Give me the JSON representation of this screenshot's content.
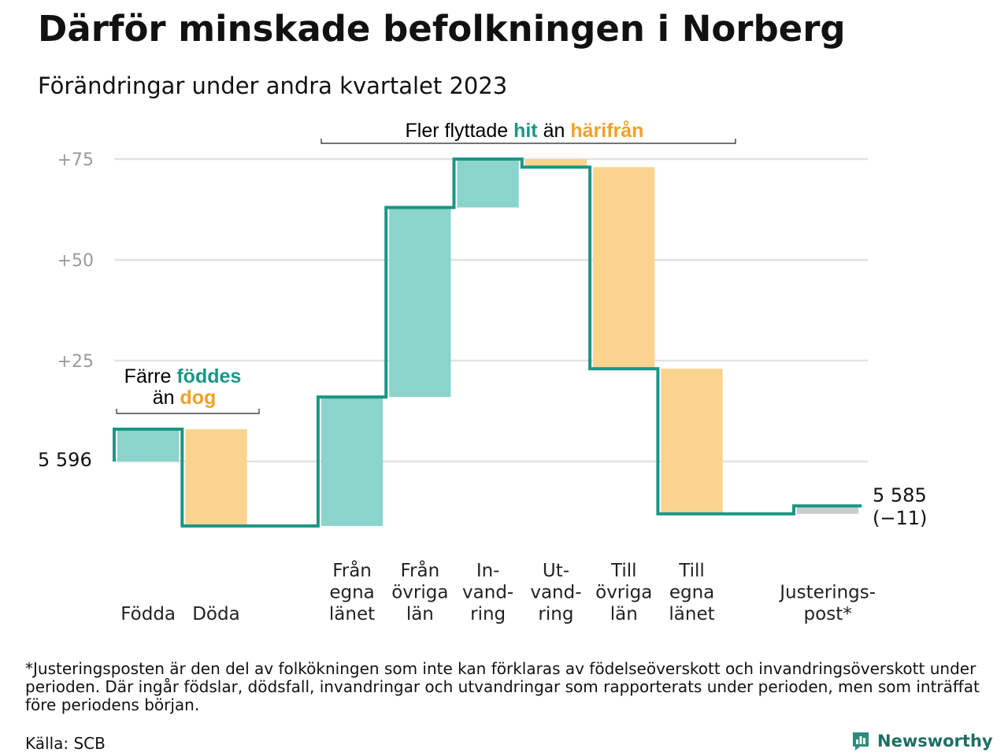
{
  "title": "Därför minskade befolkningen i Norberg",
  "subtitle": "Förändringar under andra kvartalet 2023",
  "footnote": "*Justeringsposten är den del av folkökningen som inte kan förklaras av födelseöverskott och invandringsöverskott under perioden. Där ingår födslar, dödsfall, invandringar och utvandringar som rapporterats under perioden, men som inträffat före periodens början.",
  "source": "Källa: SCB",
  "brand": "Newsworthy",
  "colors": {
    "increase": "#8ad4cc",
    "decrease": "#fad48e",
    "adjustment": "#cccccc",
    "line": "#1a9685",
    "accent_teal": "#1a9685",
    "accent_orange": "#f2a127"
  },
  "annotations": {
    "births": {
      "line1": "Färre",
      "teal": "föddes",
      "line2_prefix": "än",
      "orange": "dog"
    },
    "moves": {
      "prefix": "Fler flyttade",
      "teal": "hit",
      "middle": "än",
      "orange": "härifrån"
    }
  },
  "chart_data": {
    "type": "waterfall",
    "start_label": "5 596",
    "end_label": "5 585",
    "end_change_label": "(−11)",
    "yticks": [
      {
        "value": 25,
        "label": "+25"
      },
      {
        "value": 50,
        "label": "+50"
      },
      {
        "value": 75,
        "label": "+75"
      }
    ],
    "steps": [
      {
        "label": [
          "Födda"
        ],
        "change": 8,
        "kind": "increase"
      },
      {
        "label": [
          "Döda"
        ],
        "change": -24,
        "kind": "decrease"
      },
      {
        "label": [],
        "change": 0,
        "kind": "gap"
      },
      {
        "label": [
          "Från",
          "egna",
          "länet"
        ],
        "change": 32,
        "kind": "increase"
      },
      {
        "label": [
          "Från",
          "övriga",
          "län"
        ],
        "change": 47,
        "kind": "increase"
      },
      {
        "label": [
          "In-",
          "vand-",
          "ring"
        ],
        "change": 12,
        "kind": "increase"
      },
      {
        "label": [
          "Ut-",
          "vand-",
          "ring"
        ],
        "change": -2,
        "kind": "decrease"
      },
      {
        "label": [
          "Till",
          "övriga",
          "län"
        ],
        "change": -50,
        "kind": "decrease"
      },
      {
        "label": [
          "Till",
          "egna",
          "länet"
        ],
        "change": -36,
        "kind": "decrease"
      },
      {
        "label": [],
        "change": 0,
        "kind": "gap"
      },
      {
        "label": [
          "Justerings-",
          "post*"
        ],
        "change": 2,
        "kind": "adjustment"
      }
    ]
  }
}
